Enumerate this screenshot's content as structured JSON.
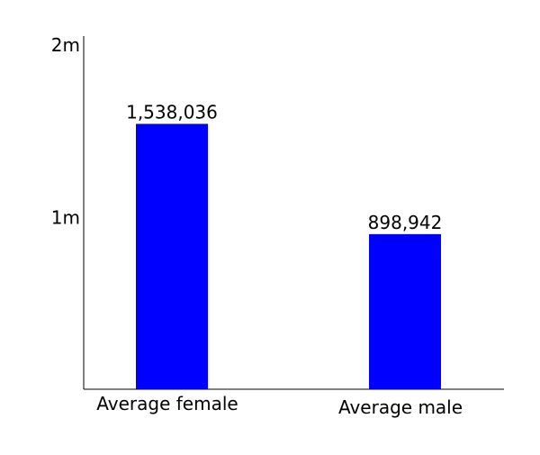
{
  "chart_data": {
    "type": "bar",
    "categories": [
      "Average female",
      "Average male"
    ],
    "values": [
      1538036,
      898942
    ],
    "value_labels": [
      "1,538,036",
      "898,942"
    ],
    "title": "",
    "xlabel": "",
    "ylabel": "",
    "ylim": [
      0,
      2000000
    ],
    "yticks": [
      {
        "value": 1000000,
        "label": "1m"
      },
      {
        "value": 2000000,
        "label": "2m"
      }
    ],
    "bar_color": "#0000ff",
    "axis_color": "#000000",
    "grid": false,
    "legend": "none"
  }
}
